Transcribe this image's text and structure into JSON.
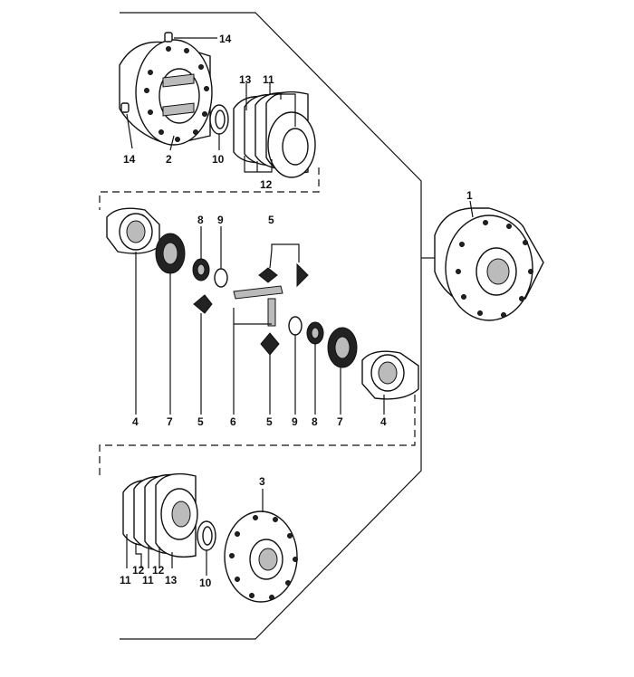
{
  "labels": {
    "l14a": "14",
    "l14b": "14",
    "l2": "2",
    "l10a": "10",
    "l13a": "13",
    "l11a": "11",
    "l12a": "12",
    "l1": "1",
    "l8a": "8",
    "l9a": "9",
    "l5a": "5",
    "l4a": "4",
    "l7a": "7",
    "l5b": "5",
    "l6": "6",
    "l5c": "5",
    "l9b": "9",
    "l8b": "8",
    "l7b": "7",
    "l4b": "4",
    "l3": "3",
    "l11b": "11",
    "l12b": "12",
    "l11c": "11",
    "l12c": "12",
    "l13b": "13",
    "l10b": "10"
  }
}
